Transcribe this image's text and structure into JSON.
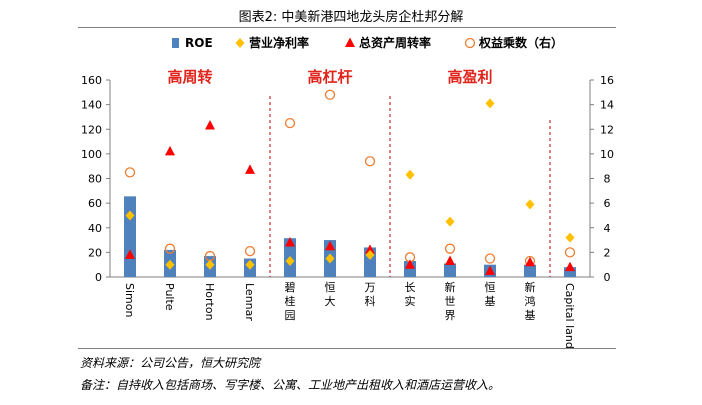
{
  "header": {
    "title": "图表2:   中美新港四地龙头房企杜邦分解"
  },
  "footer": {
    "source": "资料来源：公司公告，恒大研究院",
    "note": "备注：自持收入包括商场、写字楼、公寓、工业地产出租收入和酒店运营收入。"
  },
  "colors": {
    "roe": "#4f81bd",
    "margin": "#ffc000",
    "turnover": "#ff0000",
    "multiplier": "#ed7d31",
    "groupLabel": "#e0241b",
    "divider": "#c00000"
  },
  "chart_data": {
    "type": "bar",
    "categories": [
      "Simon",
      "Pulte",
      "Horton",
      "Lennar",
      "碧桂园",
      "恒大",
      "万科",
      "长实",
      "新世界",
      "恒基",
      "新鸿基",
      "Capital land"
    ],
    "series": [
      {
        "name": "ROE",
        "type": "bar",
        "axis": "left",
        "values": [
          65.5,
          22,
          17,
          15,
          31.5,
          30,
          24,
          13,
          11,
          10,
          10,
          8
        ]
      },
      {
        "name": "营业净利率",
        "type": "marker",
        "marker": "diamond",
        "axis": "left",
        "values": [
          50,
          10,
          10,
          10,
          13,
          15,
          18,
          83,
          45,
          141,
          59,
          32
        ]
      },
      {
        "name": "总资产周转率",
        "type": "marker",
        "marker": "triangle",
        "axis": "left",
        "values": [
          18,
          102,
          123,
          87,
          28,
          25,
          22,
          10,
          13,
          5,
          12,
          8
        ]
      },
      {
        "name": "权益乘数（右）",
        "type": "marker",
        "marker": "circle",
        "axis": "right",
        "values": [
          8.5,
          2.3,
          1.7,
          2.1,
          12.5,
          14.8,
          9.4,
          1.6,
          2.3,
          1.5,
          1.3,
          2.0
        ]
      }
    ],
    "groups": [
      {
        "label": "高周转",
        "from": 0,
        "to": 3
      },
      {
        "label": "高杠杆",
        "from": 4,
        "to": 6
      },
      {
        "label": "高盈利",
        "from": 7,
        "to": 10
      }
    ],
    "ylim": [
      0,
      160
    ],
    "yticks": [
      0,
      20,
      40,
      60,
      80,
      100,
      120,
      140,
      160
    ],
    "y2lim": [
      0,
      16
    ],
    "y2ticks": [
      0,
      2,
      4,
      6,
      8,
      10,
      12,
      14,
      16
    ],
    "legend_position": "top",
    "grid": false
  }
}
